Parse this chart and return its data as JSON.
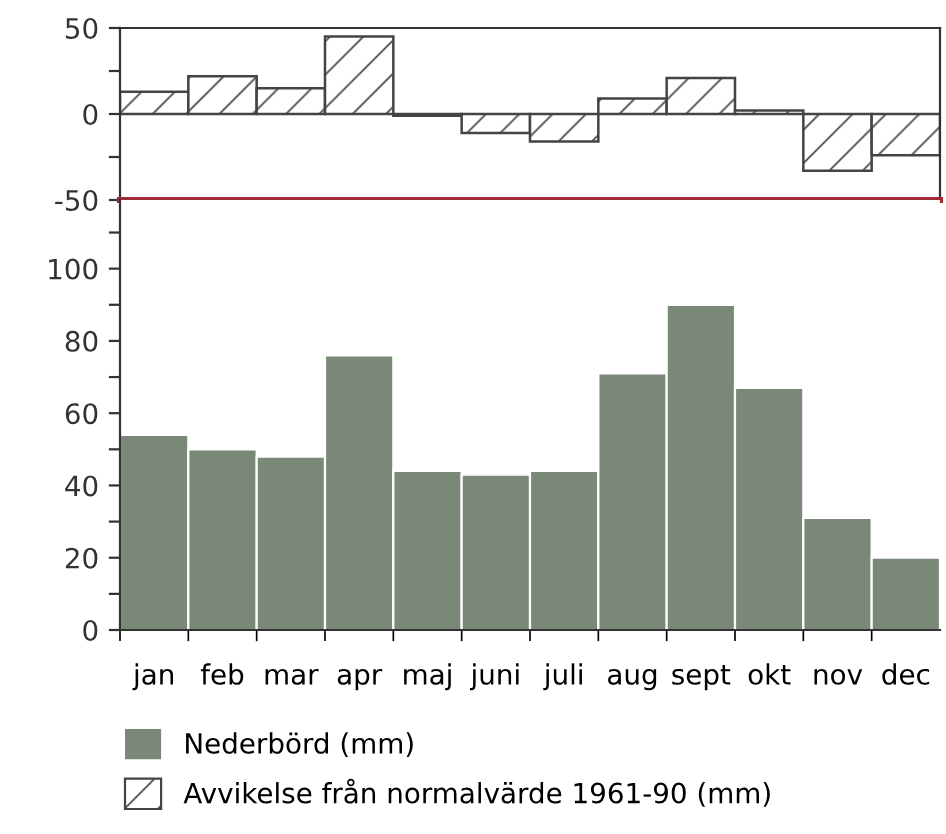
{
  "chart_data": [
    {
      "type": "bar",
      "categories": [
        null,
        null,
        null,
        null,
        null,
        null,
        null,
        null,
        null,
        null,
        null,
        null
      ],
      "series": [
        {
          "name": "Avvikelse från normalvärde 1961-90 (mm)",
          "color": "#444444",
          "values": [
            13,
            22,
            15,
            45,
            -1,
            -11,
            -16,
            9,
            21,
            2,
            -33,
            -24
          ]
        }
      ],
      "ylim": [
        -50,
        50
      ],
      "yticks": [
        -50,
        {
          "value": -25,
          "label": null
        },
        0,
        {
          "value": 25,
          "label": null
        },
        50
      ],
      "ref_lines": [
        {
          "axis": "y",
          "value": -50,
          "label": null,
          "color": "#9e2a35"
        }
      ],
      "tick_labels": "y",
      "legend": "bottom",
      "grid": false
    },
    {
      "type": "bar",
      "categories": [
        "jan",
        "feb",
        "mar",
        "apr",
        "maj",
        "juni",
        "juli",
        "aug",
        "sept",
        "okt",
        "nov",
        "dec"
      ],
      "series": [
        {
          "name": "Nederbörd (mm)",
          "color": "#7a8878",
          "values": [
            54,
            50,
            48,
            76,
            44,
            43,
            44,
            71,
            90,
            67,
            31,
            20
          ]
        }
      ],
      "ylim": [
        0,
        119
      ],
      "yticks": [
        0,
        {
          "value": 10,
          "label": null
        },
        20,
        {
          "value": 30,
          "label": null
        },
        40,
        {
          "value": 50,
          "label": null
        },
        60,
        {
          "value": 70,
          "label": null
        },
        80,
        {
          "value": 90,
          "label": null
        },
        100,
        {
          "value": 110,
          "label": null
        }
      ],
      "legend": "bottom",
      "grid": false
    }
  ]
}
